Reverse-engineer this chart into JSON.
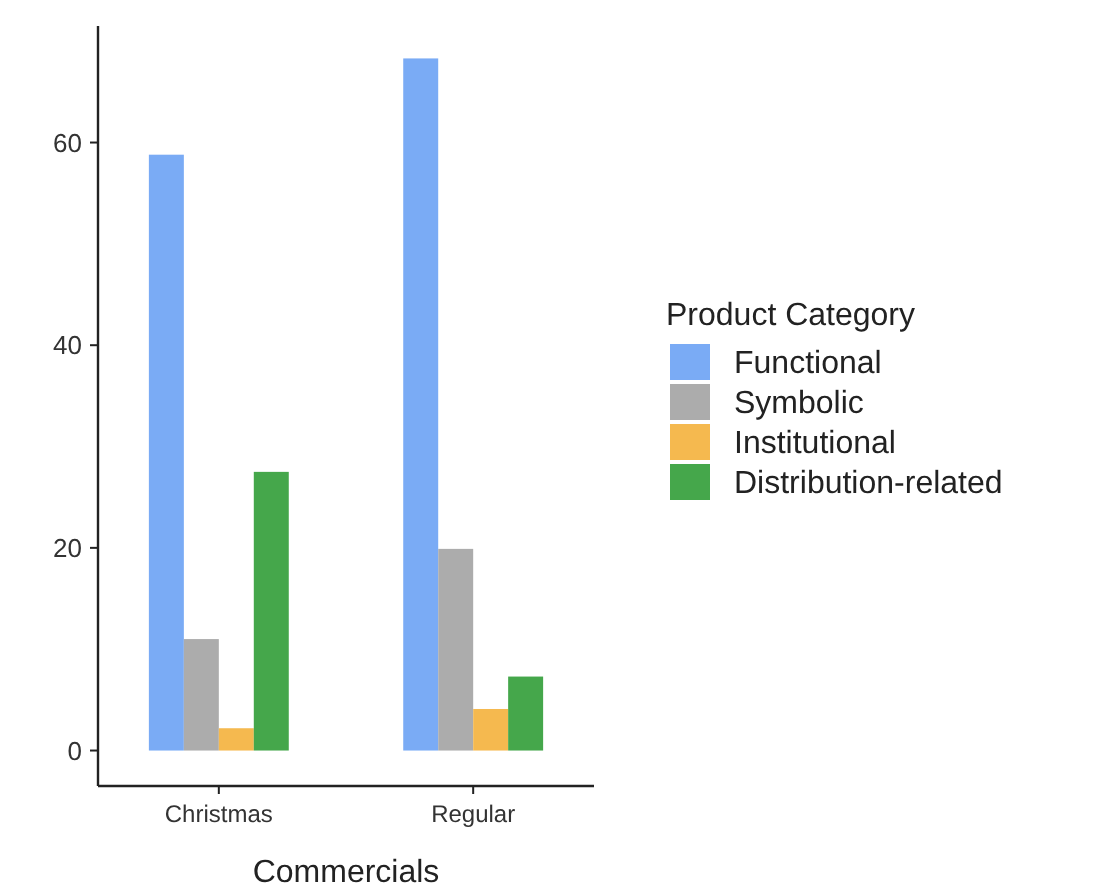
{
  "chart_data": {
    "type": "bar",
    "xlabel": "Commercials",
    "legend_title": "Product Category",
    "legend": "right",
    "categories": [
      "Christmas",
      "Regular"
    ],
    "series": [
      {
        "name": "Functional",
        "color": "#7aabf5",
        "values": [
          58.8,
          68.3
        ]
      },
      {
        "name": "Symbolic",
        "color": "#acacac",
        "values": [
          11.0,
          19.9
        ]
      },
      {
        "name": "Institutional",
        "color": "#f5b94f",
        "values": [
          2.2,
          4.1
        ]
      },
      {
        "name": "Distribution-related",
        "color": "#45a74b",
        "values": [
          27.5,
          7.3
        ]
      }
    ],
    "ylim": [
      -3.5,
      71.5
    ],
    "yticks": [
      0,
      20,
      40,
      60
    ],
    "grid": false
  }
}
